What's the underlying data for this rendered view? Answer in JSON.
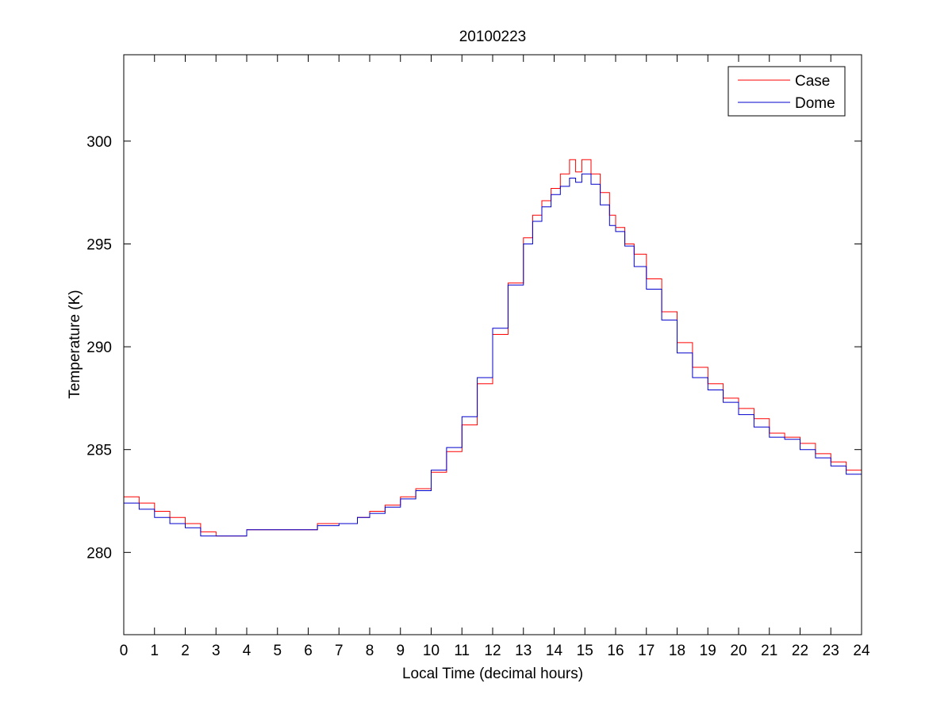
{
  "chart_data": {
    "type": "line",
    "title": "20100223",
    "xlabel": "Local Time (decimal hours)",
    "ylabel": "Temperature (K)",
    "xlim": [
      0,
      24
    ],
    "ylim": [
      276,
      304.2
    ],
    "xticks": [
      0,
      1,
      2,
      3,
      4,
      5,
      6,
      7,
      8,
      9,
      10,
      11,
      12,
      13,
      14,
      15,
      16,
      17,
      18,
      19,
      20,
      21,
      22,
      23,
      24
    ],
    "yticks": [
      280,
      285,
      290,
      295,
      300
    ],
    "grid": false,
    "legend_position": "top-right",
    "series": [
      {
        "name": "Case",
        "color": "#ff0000",
        "x": [
          0,
          0.5,
          1.0,
          1.5,
          2.0,
          2.5,
          3.0,
          3.5,
          4.0,
          5.0,
          6.0,
          6.3,
          7.0,
          7.6,
          8.0,
          8.5,
          9.0,
          9.5,
          10.0,
          10.5,
          11.0,
          11.5,
          12.0,
          12.5,
          13.0,
          13.3,
          13.6,
          13.9,
          14.2,
          14.5,
          14.7,
          14.9,
          15.0,
          15.2,
          15.5,
          15.8,
          16.0,
          16.3,
          16.6,
          17.0,
          17.5,
          18.0,
          18.5,
          19.0,
          19.5,
          20.0,
          20.5,
          21.0,
          21.5,
          22.0,
          22.5,
          23.0,
          23.5,
          24.0
        ],
        "values": [
          282.7,
          282.4,
          282.0,
          281.7,
          281.4,
          281.0,
          280.8,
          280.8,
          281.1,
          281.1,
          281.1,
          281.4,
          281.4,
          281.7,
          282.0,
          282.3,
          282.7,
          283.1,
          283.9,
          284.9,
          286.2,
          288.2,
          290.6,
          293.1,
          295.3,
          296.4,
          297.1,
          297.7,
          298.4,
          299.1,
          298.5,
          299.1,
          299.1,
          298.4,
          297.5,
          296.4,
          295.8,
          295.0,
          294.5,
          293.3,
          291.7,
          290.2,
          289.0,
          288.2,
          287.5,
          287.0,
          286.5,
          285.8,
          285.6,
          285.3,
          284.8,
          284.4,
          284.0,
          283.6
        ]
      },
      {
        "name": "Dome",
        "color": "#0000cc",
        "x": [
          0,
          0.5,
          1.0,
          1.5,
          2.0,
          2.5,
          3.0,
          3.5,
          4.0,
          5.0,
          6.0,
          6.3,
          7.0,
          7.6,
          8.0,
          8.5,
          9.0,
          9.5,
          10.0,
          10.5,
          11.0,
          11.5,
          12.0,
          12.5,
          13.0,
          13.3,
          13.6,
          13.9,
          14.2,
          14.5,
          14.7,
          14.9,
          15.0,
          15.2,
          15.5,
          15.8,
          16.0,
          16.3,
          16.6,
          17.0,
          17.5,
          18.0,
          18.5,
          19.0,
          19.5,
          20.0,
          20.5,
          21.0,
          21.5,
          22.0,
          22.5,
          23.0,
          23.5,
          24.0
        ],
        "values": [
          282.4,
          282.1,
          281.7,
          281.4,
          281.2,
          280.8,
          280.8,
          280.8,
          281.1,
          281.1,
          281.1,
          281.3,
          281.4,
          281.7,
          281.9,
          282.2,
          282.6,
          283.0,
          284.0,
          285.1,
          286.6,
          288.5,
          290.9,
          293.0,
          295.0,
          296.1,
          296.8,
          297.4,
          297.8,
          298.2,
          298.0,
          298.4,
          298.4,
          297.9,
          296.9,
          295.9,
          295.6,
          294.9,
          293.9,
          292.8,
          291.3,
          289.7,
          288.5,
          287.9,
          287.3,
          286.7,
          286.1,
          285.6,
          285.5,
          285.0,
          284.6,
          284.2,
          283.8,
          283.5
        ]
      }
    ]
  }
}
